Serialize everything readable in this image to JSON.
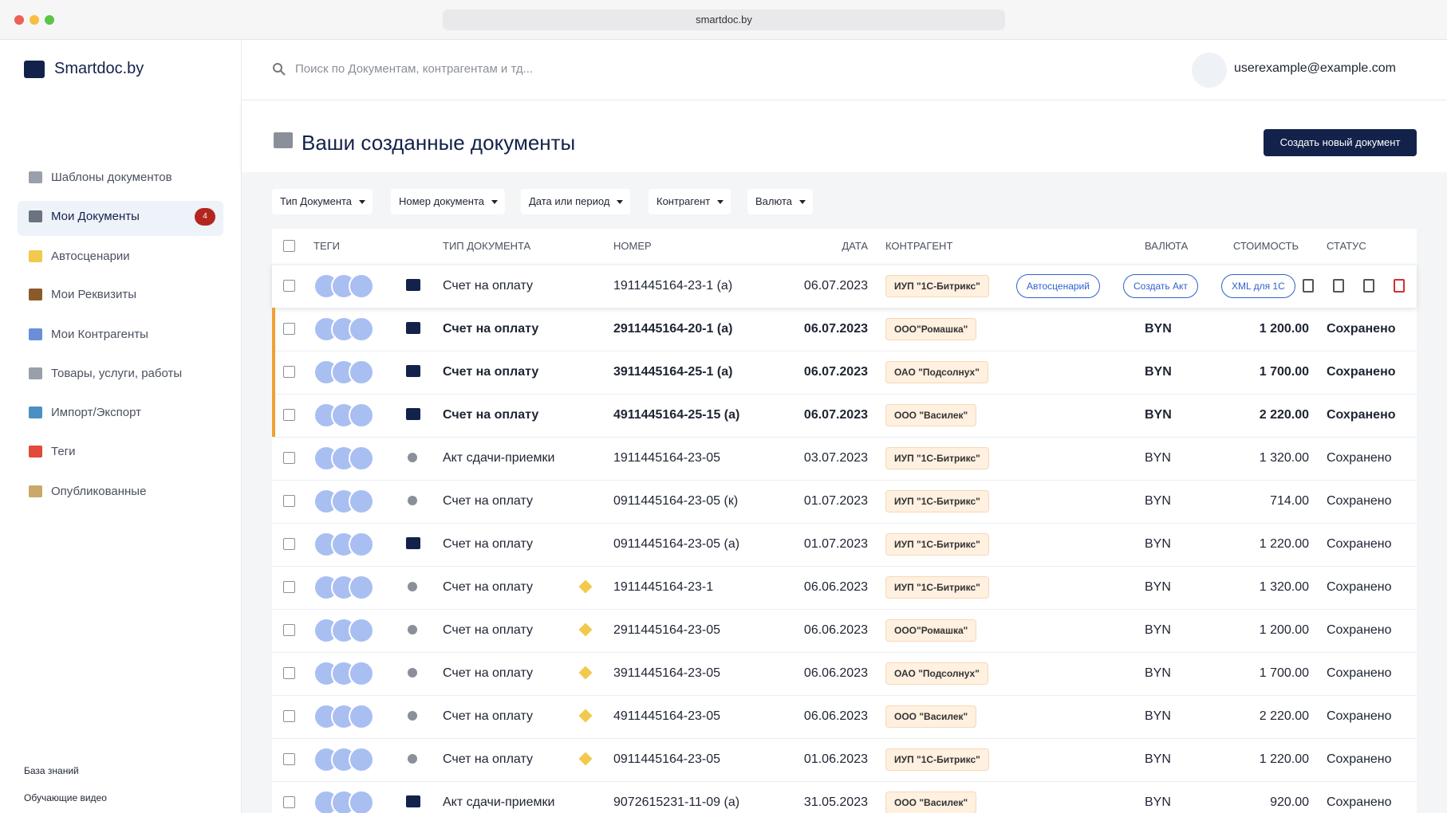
{
  "browser": {
    "url": "smartdoc.by"
  },
  "sidebar": {
    "brand": "Smartdoc.by",
    "nav": [
      {
        "label": "Шаблоны документов"
      },
      {
        "label": "Мои Документы",
        "badge": 4,
        "active": true
      },
      {
        "label": "Автосценарии"
      },
      {
        "label": "Мои Реквизиты"
      },
      {
        "label": "Мои Контрагенты"
      },
      {
        "label": "Товары, услуги, работы"
      },
      {
        "label": "Импорт/Экспорт"
      },
      {
        "label": "Теги"
      },
      {
        "label": "Опубликованные"
      }
    ],
    "footer": [
      "База знаний",
      "Обучающие видео"
    ]
  },
  "header": {
    "search_placeholder": "Поиск по Документам, контрагентам и тд...",
    "user": "userexample@example.com"
  },
  "page": {
    "title": "Ваши созданные документы",
    "create_button": "Создать новый документ",
    "filters": [
      "Тип Документа",
      "Номер документа",
      "Дата или период",
      "Контрагент",
      "Валюта"
    ]
  },
  "table": {
    "headers": [
      "ТЕГИ",
      "ТИП ДОКУМЕНТА",
      "НОМЕР",
      "ДАТА",
      "КОНТРАГЕНТ",
      "ВАЛЮТА",
      "СТОИМОСТЬ",
      "СТАТУС"
    ],
    "row_actions": [
      "Автосценарий",
      "Создать Акт",
      "XML для 1С"
    ],
    "rows": [
      {
        "type": "Счет на оплату",
        "number": "1911445164-23-1 (а)",
        "date": "06.07.2023",
        "counterparty": "ИУП \"1С-Битрикс\"",
        "icon": "doc",
        "hovered": true
      },
      {
        "type": "Счет на оплату",
        "number": "2911445164-20-1 (а)",
        "date": "06.07.2023",
        "counterparty": "ООО\"Ромашка\"",
        "currency": "BYN",
        "cost": "1 200.00",
        "status": "Сохранено",
        "icon": "doc",
        "highlighted": true
      },
      {
        "type": "Счет на оплату",
        "number": "3911445164-25-1 (а)",
        "date": "06.07.2023",
        "counterparty": "ОАО \"Подсолнух\"",
        "currency": "BYN",
        "cost": "1 700.00",
        "status": "Сохранено",
        "icon": "doc",
        "highlighted": true
      },
      {
        "type": "Счет на оплату",
        "number": "4911445164-25-15 (а)",
        "date": "06.07.2023",
        "counterparty": "ООО \"Василек\"",
        "currency": "BYN",
        "cost": "2 220.00",
        "status": "Сохранено",
        "icon": "doc",
        "highlighted": true
      },
      {
        "type": "Акт сдачи-приемки",
        "number": "1911445164-23-05",
        "date": "03.07.2023",
        "counterparty": "ИУП \"1С-Битрикс\"",
        "currency": "BYN",
        "cost": "1 320.00",
        "status": "Сохранено",
        "icon": "user"
      },
      {
        "type": "Счет на оплату",
        "number": "0911445164-23-05 (к)",
        "date": "01.07.2023",
        "counterparty": "ИУП \"1С-Битрикс\"",
        "currency": "BYN",
        "cost": "714.00",
        "status": "Сохранено",
        "icon": "user"
      },
      {
        "type": "Счет на оплату",
        "number": "0911445164-23-05 (а)",
        "date": "01.07.2023",
        "counterparty": "ИУП \"1С-Битрикс\"",
        "currency": "BYN",
        "cost": "1 220.00",
        "status": "Сохранено",
        "icon": "doc"
      },
      {
        "type": "Счет на оплату",
        "number": "1911445164-23-1",
        "date": "06.06.2023",
        "counterparty": "ИУП \"1С-Битрикс\"",
        "currency": "BYN",
        "cost": "1 320.00",
        "status": "Сохранено",
        "icon": "user",
        "auto": true
      },
      {
        "type": "Счет на оплату",
        "number": "2911445164-23-05",
        "date": "06.06.2023",
        "counterparty": "ООО\"Ромашка\"",
        "currency": "BYN",
        "cost": "1 200.00",
        "status": "Сохранено",
        "icon": "user",
        "auto": true
      },
      {
        "type": "Счет на оплату",
        "number": "3911445164-23-05",
        "date": "06.06.2023",
        "counterparty": "ОАО \"Подсолнух\"",
        "currency": "BYN",
        "cost": "1 700.00",
        "status": "Сохранено",
        "icon": "user",
        "auto": true
      },
      {
        "type": "Счет на оплату",
        "number": "4911445164-23-05",
        "date": "06.06.2023",
        "counterparty": "ООО \"Василек\"",
        "currency": "BYN",
        "cost": "2 220.00",
        "status": "Сохранено",
        "icon": "user",
        "auto": true
      },
      {
        "type": "Счет на оплату",
        "number": "0911445164-23-05",
        "date": "01.06.2023",
        "counterparty": "ИУП \"1С-Битрикс\"",
        "currency": "BYN",
        "cost": "1 220.00",
        "status": "Сохранено",
        "icon": "user",
        "auto": true
      },
      {
        "type": "Акт сдачи-приемки",
        "number": "9072615231-11-09 (а)",
        "date": "31.05.2023",
        "counterparty": "ООО \"Василек\"",
        "currency": "BYN",
        "cost": "920.00",
        "status": "Сохранено",
        "icon": "doc"
      }
    ]
  }
}
